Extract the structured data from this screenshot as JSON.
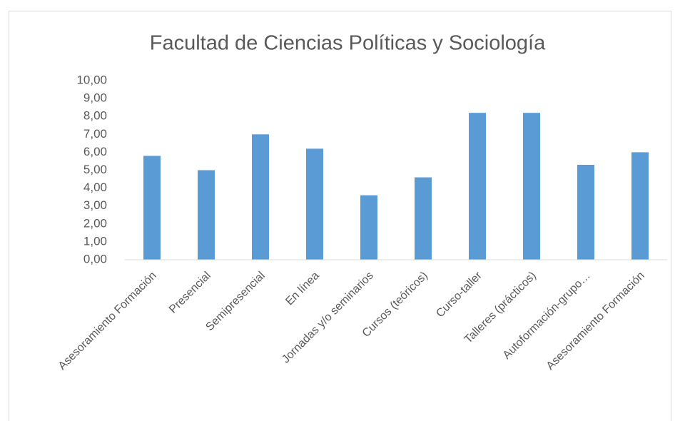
{
  "chart_data": {
    "type": "bar",
    "title": "Facultad de Ciencias Políticas y Sociología",
    "categories": [
      "Asesoramiento Formación",
      "Presencial",
      "Semipresencial",
      "En línea",
      "Jornadas y/o seminarios",
      "Cursos (teóricos)",
      "Curso-taller",
      "Talleres (prácticos)",
      "Autoformación-grupo…",
      "Asesoramiento Formación"
    ],
    "values": [
      5.8,
      5.0,
      7.0,
      6.2,
      3.6,
      4.6,
      8.2,
      8.2,
      5.3,
      6.0
    ],
    "color": "#5b9bd5",
    "ylim": [
      0,
      10
    ],
    "yticks": [
      {
        "value": 0,
        "label": "0,00"
      },
      {
        "value": 1,
        "label": "1,00"
      },
      {
        "value": 2,
        "label": "2,00"
      },
      {
        "value": 3,
        "label": "3,00"
      },
      {
        "value": 4,
        "label": "4,00"
      },
      {
        "value": 5,
        "label": "5,00"
      },
      {
        "value": 6,
        "label": "6,00"
      },
      {
        "value": 7,
        "label": "7,00"
      },
      {
        "value": 8,
        "label": "8,00"
      },
      {
        "value": 9,
        "label": "9,00"
      },
      {
        "value": 10,
        "label": "10,00"
      }
    ],
    "grid": false
  }
}
